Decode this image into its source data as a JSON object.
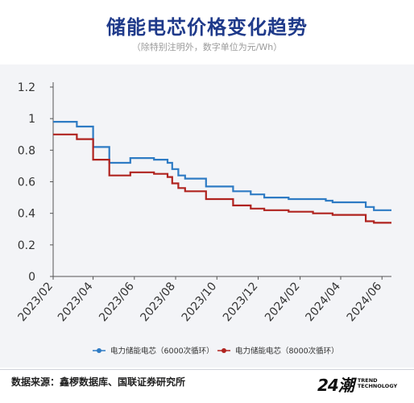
{
  "title": "储能电芯价格变化趋势",
  "subtitle": "（除特别注明外，数字单位为元/Wh）",
  "source": "数据来源：鑫椤数据库、国联证券研究所",
  "brand": {
    "mark": "24潮",
    "line1": "TREND",
    "line2": "TECHNOLOGY"
  },
  "colors": {
    "panel": "#f3f4f7",
    "series1": "#2e7bc4",
    "series2": "#b0231f",
    "title": "#1f3a8a"
  },
  "chart_data": {
    "type": "line",
    "title": "储能电芯价格变化趋势",
    "ylim": [
      0,
      1.2
    ],
    "yticks": [
      "0",
      "0.2",
      "0.4",
      "0.6",
      "0.8",
      "1",
      "1.2"
    ],
    "xlim": [
      "2023-02-01",
      "2024-06-15"
    ],
    "xtick_labels": [
      "2023/02",
      "2023/04",
      "2023/06",
      "2023/08",
      "2023/10",
      "2023/12",
      "2024/02",
      "2024/04",
      "2024/06"
    ],
    "grid": false,
    "legend": "bottom",
    "series": [
      {
        "name": "电力储能电芯（6000次循环）",
        "color": "#2e7bc4",
        "points": [
          [
            "2023-02-01",
            0.98
          ],
          [
            "2023-03-08",
            0.98
          ],
          [
            "2023-03-08",
            0.95
          ],
          [
            "2023-04-01",
            0.95
          ],
          [
            "2023-04-01",
            0.82
          ],
          [
            "2023-04-25",
            0.82
          ],
          [
            "2023-04-25",
            0.72
          ],
          [
            "2023-05-26",
            0.72
          ],
          [
            "2023-05-26",
            0.75
          ],
          [
            "2023-06-30",
            0.75
          ],
          [
            "2023-06-30",
            0.74
          ],
          [
            "2023-07-20",
            0.74
          ],
          [
            "2023-07-20",
            0.72
          ],
          [
            "2023-07-27",
            0.72
          ],
          [
            "2023-07-27",
            0.68
          ],
          [
            "2023-08-05",
            0.68
          ],
          [
            "2023-08-05",
            0.64
          ],
          [
            "2023-08-15",
            0.64
          ],
          [
            "2023-08-15",
            0.62
          ],
          [
            "2023-09-15",
            0.62
          ],
          [
            "2023-09-15",
            0.57
          ],
          [
            "2023-10-25",
            0.57
          ],
          [
            "2023-10-25",
            0.54
          ],
          [
            "2023-11-20",
            0.54
          ],
          [
            "2023-11-20",
            0.52
          ],
          [
            "2023-12-10",
            0.52
          ],
          [
            "2023-12-10",
            0.5
          ],
          [
            "2024-01-15",
            0.5
          ],
          [
            "2024-01-15",
            0.49
          ],
          [
            "2024-03-10",
            0.49
          ],
          [
            "2024-03-10",
            0.48
          ],
          [
            "2024-03-20",
            0.48
          ],
          [
            "2024-03-20",
            0.47
          ],
          [
            "2024-05-08",
            0.47
          ],
          [
            "2024-05-08",
            0.44
          ],
          [
            "2024-05-20",
            0.44
          ],
          [
            "2024-05-20",
            0.42
          ],
          [
            "2024-06-15",
            0.42
          ]
        ]
      },
      {
        "name": "电力储能电芯（8000次循环）",
        "color": "#b0231f",
        "points": [
          [
            "2023-02-01",
            0.9
          ],
          [
            "2023-03-08",
            0.9
          ],
          [
            "2023-03-08",
            0.87
          ],
          [
            "2023-04-01",
            0.87
          ],
          [
            "2023-04-01",
            0.74
          ],
          [
            "2023-04-25",
            0.74
          ],
          [
            "2023-04-25",
            0.64
          ],
          [
            "2023-05-26",
            0.64
          ],
          [
            "2023-05-26",
            0.66
          ],
          [
            "2023-06-30",
            0.66
          ],
          [
            "2023-06-30",
            0.65
          ],
          [
            "2023-07-20",
            0.65
          ],
          [
            "2023-07-20",
            0.63
          ],
          [
            "2023-07-27",
            0.63
          ],
          [
            "2023-07-27",
            0.59
          ],
          [
            "2023-08-05",
            0.59
          ],
          [
            "2023-08-05",
            0.56
          ],
          [
            "2023-08-15",
            0.56
          ],
          [
            "2023-08-15",
            0.54
          ],
          [
            "2023-09-15",
            0.54
          ],
          [
            "2023-09-15",
            0.49
          ],
          [
            "2023-10-25",
            0.49
          ],
          [
            "2023-10-25",
            0.45
          ],
          [
            "2023-11-20",
            0.45
          ],
          [
            "2023-11-20",
            0.43
          ],
          [
            "2023-12-10",
            0.43
          ],
          [
            "2023-12-10",
            0.42
          ],
          [
            "2024-01-15",
            0.42
          ],
          [
            "2024-01-15",
            0.41
          ],
          [
            "2024-02-20",
            0.41
          ],
          [
            "2024-02-20",
            0.4
          ],
          [
            "2024-03-20",
            0.4
          ],
          [
            "2024-03-20",
            0.39
          ],
          [
            "2024-05-08",
            0.39
          ],
          [
            "2024-05-08",
            0.35
          ],
          [
            "2024-05-20",
            0.35
          ],
          [
            "2024-05-20",
            0.34
          ],
          [
            "2024-06-15",
            0.34
          ]
        ]
      }
    ]
  }
}
